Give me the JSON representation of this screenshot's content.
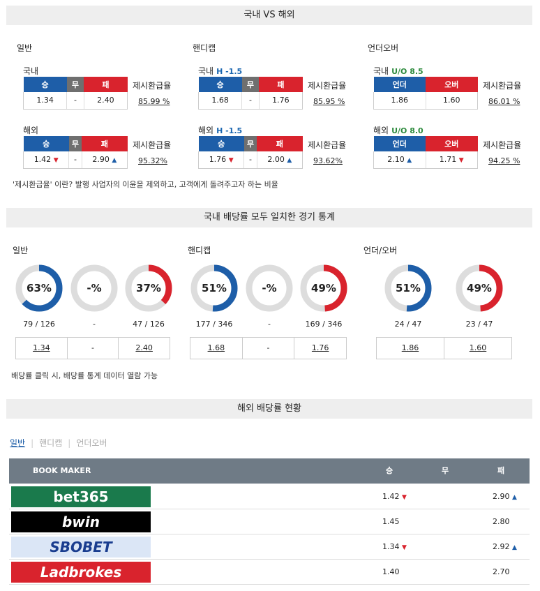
{
  "sections": {
    "domestic_vs_overseas": "국내 VS 해외",
    "match_stats": "국내 배당률 모두 일치한 경기 통계",
    "overseas_status": "해외 배당률 현황"
  },
  "groups": {
    "general": {
      "title": "일반",
      "domestic": {
        "label": "국내",
        "h1": "승",
        "h2": "무",
        "h3": "패",
        "v1": "1.34",
        "v2": "-",
        "v3": "2.40",
        "rate": "85.99 %"
      },
      "overseas": {
        "label": "해외",
        "h1": "승",
        "h2": "무",
        "h3": "패",
        "v1": "1.42",
        "v2": "-",
        "v3": "2.90",
        "rate": "95.32%"
      }
    },
    "handicap": {
      "title": "핸디캡",
      "domestic": {
        "label": "국내",
        "line": "H -1.5",
        "h1": "승",
        "h2": "무",
        "h3": "패",
        "v1": "1.68",
        "v2": "-",
        "v3": "1.76",
        "rate": "85.95 %"
      },
      "overseas": {
        "label": "해외",
        "line": "H -1.5",
        "h1": "승",
        "h2": "무",
        "h3": "패",
        "v1": "1.76",
        "v2": "-",
        "v3": "2.00",
        "rate": "93.62%"
      }
    },
    "underover": {
      "title": "언더오버",
      "domestic": {
        "label": "국내",
        "line": "U/O 8.5",
        "h1": "언더",
        "h2": "오버",
        "v1": "1.86",
        "v2": "1.60",
        "rate": "86.01 %"
      },
      "overseas": {
        "label": "해외",
        "line": "U/O 8.0",
        "h1": "언더",
        "h2": "오버",
        "v1": "2.10",
        "v2": "1.71",
        "rate": "94.25 %"
      }
    }
  },
  "rate_label": "제시환급율",
  "note1": "'제시환급율' 이란? 발행 사업자의 이윤을 제외하고, 고객에게 돌려주고자 하는 비율",
  "stats": {
    "general": {
      "title": "일반",
      "d1": {
        "pct": 63,
        "txt": "63%",
        "cnt": "79 / 126"
      },
      "d2": {
        "txt": "-%",
        "cnt": "-"
      },
      "d3": {
        "pct": 37,
        "txt": "37%",
        "cnt": "47 / 126"
      },
      "o1": "1.34",
      "o2": "-",
      "o3": "2.40"
    },
    "handicap": {
      "title": "핸디캡",
      "d1": {
        "pct": 51,
        "txt": "51%",
        "cnt": "177 / 346"
      },
      "d2": {
        "txt": "-%",
        "cnt": "-"
      },
      "d3": {
        "pct": 49,
        "txt": "49%",
        "cnt": "169 / 346"
      },
      "o1": "1.68",
      "o2": "-",
      "o3": "1.76"
    },
    "underover": {
      "title": "언더/오버",
      "d1": {
        "pct": 51,
        "txt": "51%",
        "cnt": "24 / 47"
      },
      "d3": {
        "pct": 49,
        "txt": "49%",
        "cnt": "23 / 47"
      },
      "o1": "1.86",
      "o2": "1.60"
    }
  },
  "note2": "배당률 클릭 시, 배당률 통계 데이터 열람 가능",
  "tabs": [
    "일반",
    "핸디캡",
    "언더오버"
  ],
  "bookmaker": {
    "header": {
      "name": "BOOK MAKER",
      "win": "승",
      "draw": "무",
      "lose": "패"
    },
    "rows": [
      {
        "name": "bet365",
        "win": "1.42",
        "win_dir": "down",
        "lose": "2.90",
        "lose_dir": "up",
        "color": "#1a7a4c"
      },
      {
        "name": "bwin",
        "win": "1.45",
        "win_dir": "",
        "lose": "2.80",
        "lose_dir": "",
        "color": "#000000"
      },
      {
        "name": "SBOBET",
        "win": "1.34",
        "win_dir": "down",
        "lose": "2.92",
        "lose_dir": "up",
        "color": "#dbe6f6"
      },
      {
        "name": "Ladbrokes",
        "win": "1.40",
        "win_dir": "",
        "lose": "2.70",
        "lose_dir": "",
        "color": "#d9232d"
      }
    ]
  },
  "colors": {
    "blue": "#1e5ea8",
    "red": "#d9232d",
    "gray": "#dddddd"
  },
  "arrows": {
    "up": "▲",
    "down": "▼"
  }
}
